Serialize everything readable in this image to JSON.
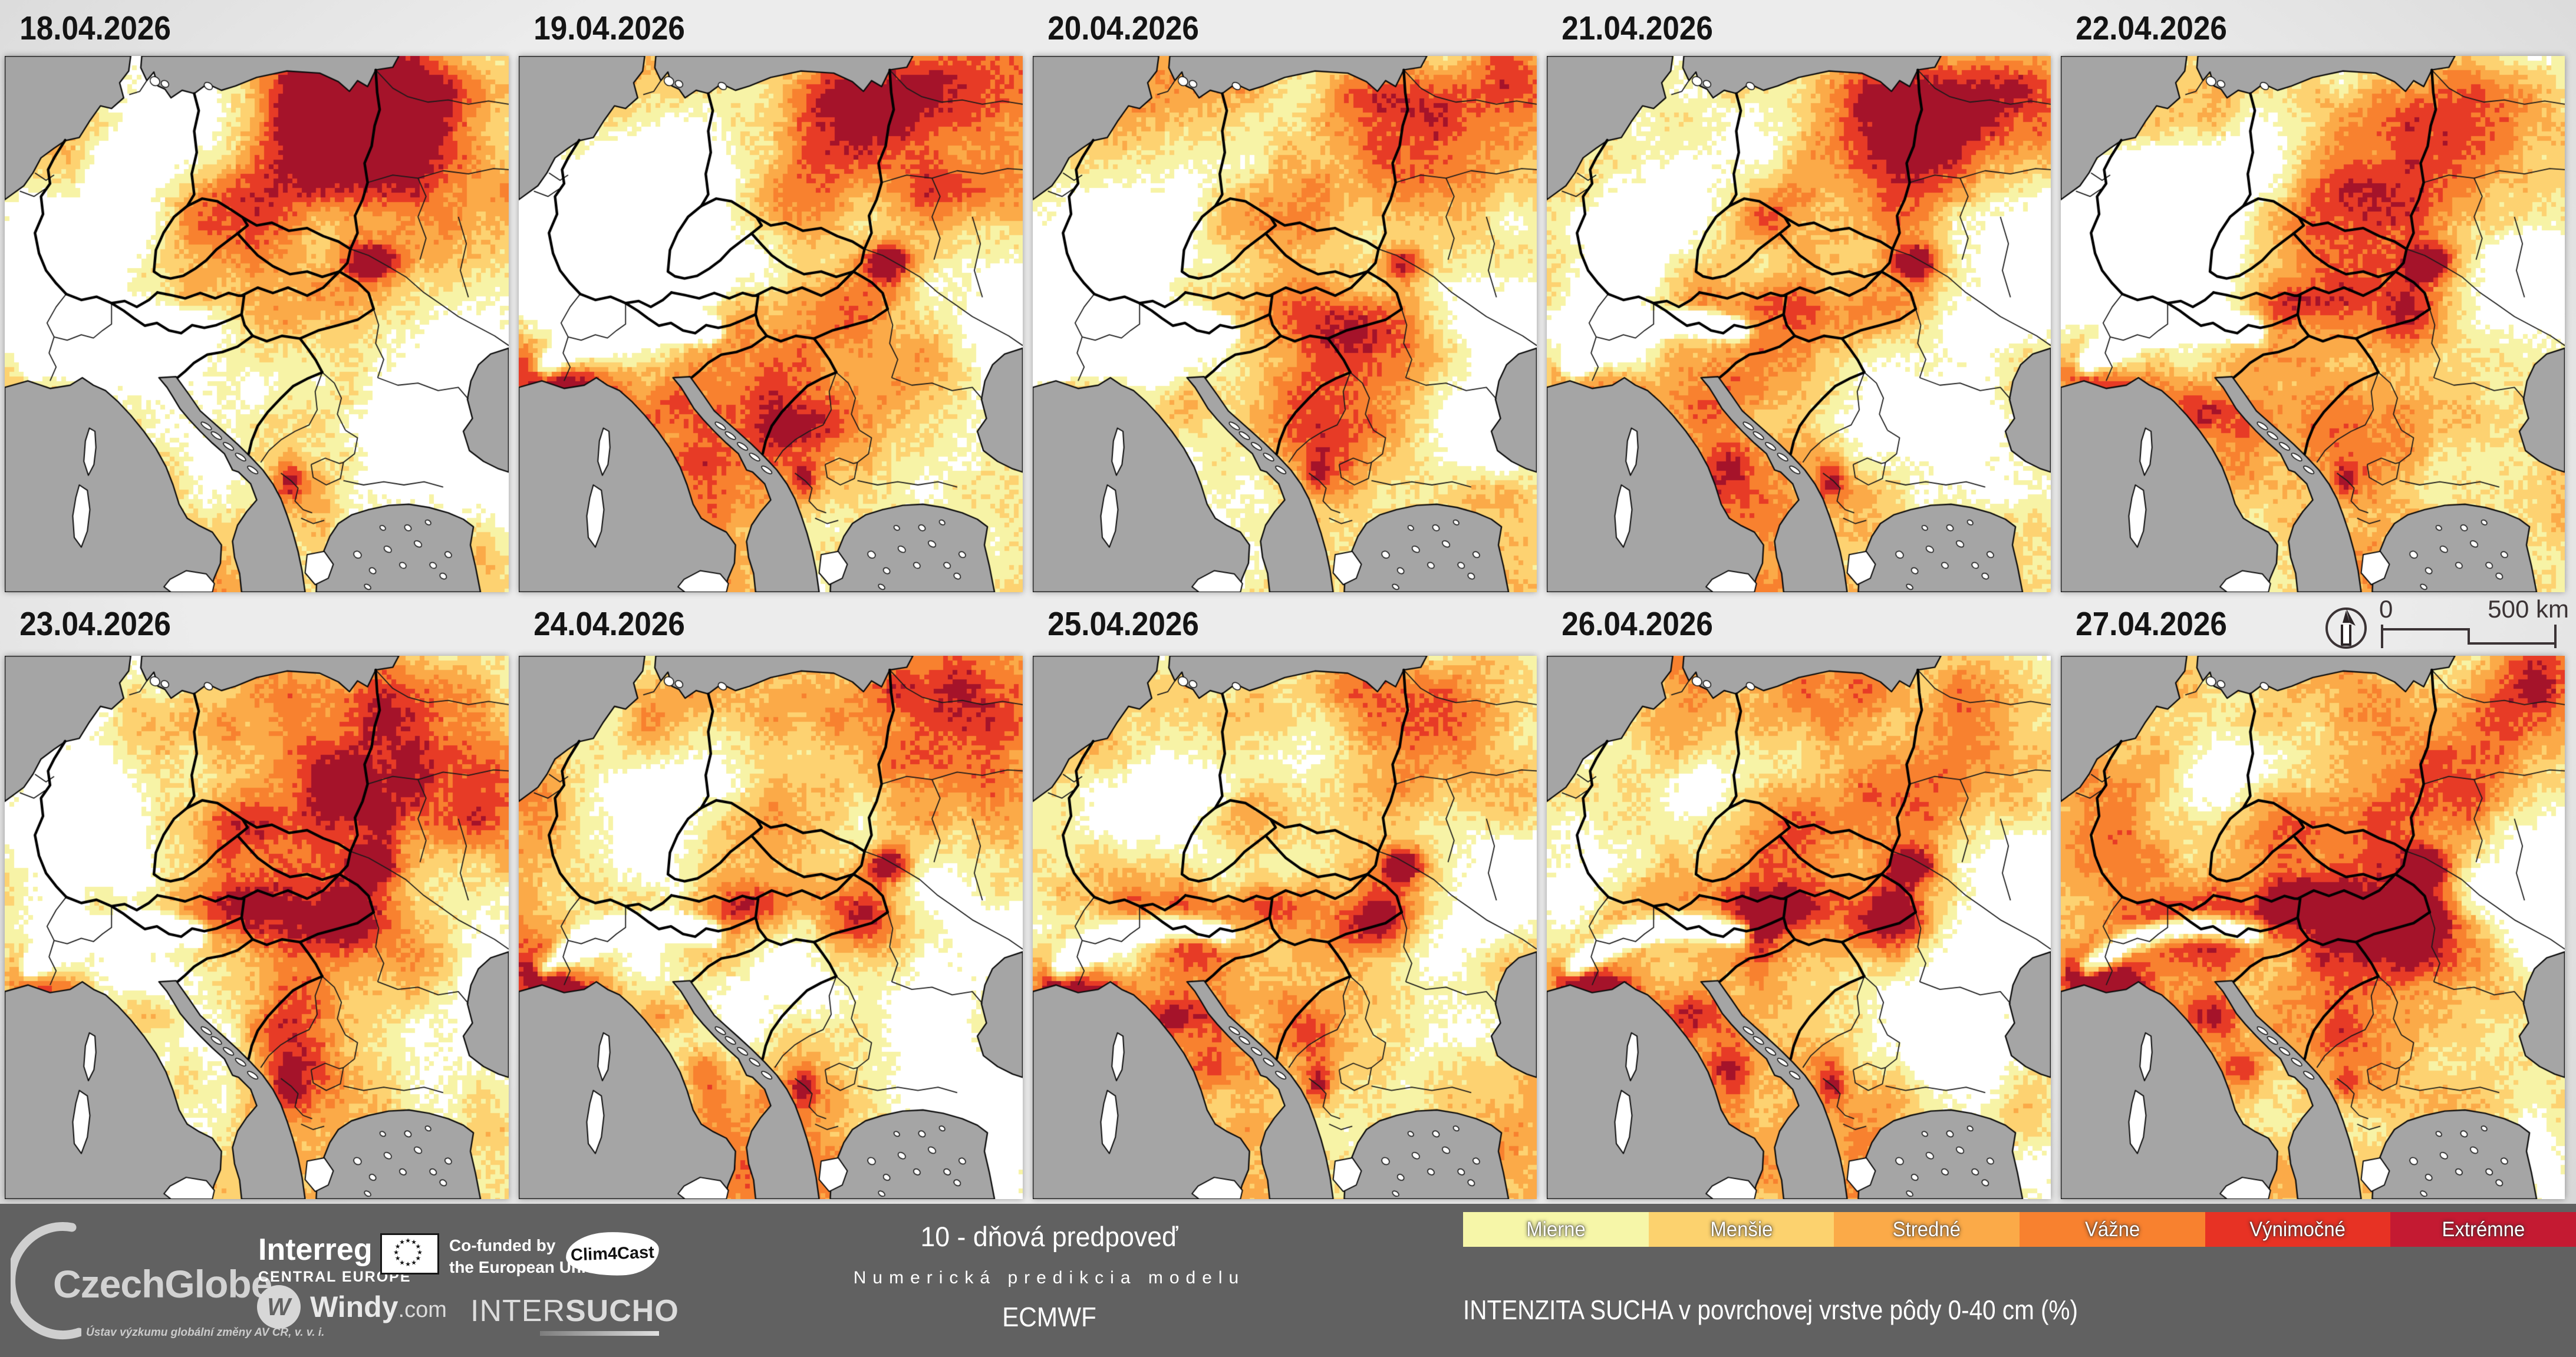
{
  "panels": [
    {
      "date": "18.04.2026"
    },
    {
      "date": "19.04.2026"
    },
    {
      "date": "20.04.2026"
    },
    {
      "date": "21.04.2026"
    },
    {
      "date": "22.04.2026"
    },
    {
      "date": "23.04.2026"
    },
    {
      "date": "24.04.2026"
    },
    {
      "date": "25.04.2026"
    },
    {
      "date": "26.04.2026"
    },
    {
      "date": "27.04.2026"
    }
  ],
  "scalebar": {
    "zero": "0",
    "distance": "500 km"
  },
  "legend": {
    "items": [
      {
        "label": "Mierne",
        "color": "#f6f6a8"
      },
      {
        "label": "Menšie",
        "color": "#fcd26e"
      },
      {
        "label": "Stredné",
        "color": "#fbaa48"
      },
      {
        "label": "Vážne",
        "color": "#f8812f"
      },
      {
        "label": "Výnimočné",
        "color": "#e73224"
      },
      {
        "label": "Extrémne",
        "color": "#c41a32"
      }
    ]
  },
  "map_palette": {
    "sea": "#a5a5a5",
    "land": "#ffffff",
    "classes": [
      "#ffffff",
      "#f7f3a6",
      "#fdd271",
      "#fbaa48",
      "#f8812f",
      "#e73b26",
      "#a5132a"
    ]
  },
  "footer": {
    "czechglobe": {
      "name": "CzechGlobe",
      "subtitle": "Ústav výzkumu globální změny AV ČR, v. v. i."
    },
    "interreg": {
      "line1": "Interreg",
      "line2": "CENTRAL EUROPE"
    },
    "eu": {
      "line1": "Co-funded by",
      "line2": "the European Union"
    },
    "clim4cast": "Clim4Cast",
    "windy": {
      "name": "Windy",
      "tld": ".com"
    },
    "intersucho": {
      "part1": "INTER",
      "part2": "SUCHO"
    },
    "center": {
      "line1": "10 - dňová predpoveď",
      "line2": "Numerická predikcia modelu",
      "line3": "ECMWF"
    },
    "title": "INTENZITA SUCHA v povrchovej vrstve pôdy 0-40 cm (%)"
  }
}
